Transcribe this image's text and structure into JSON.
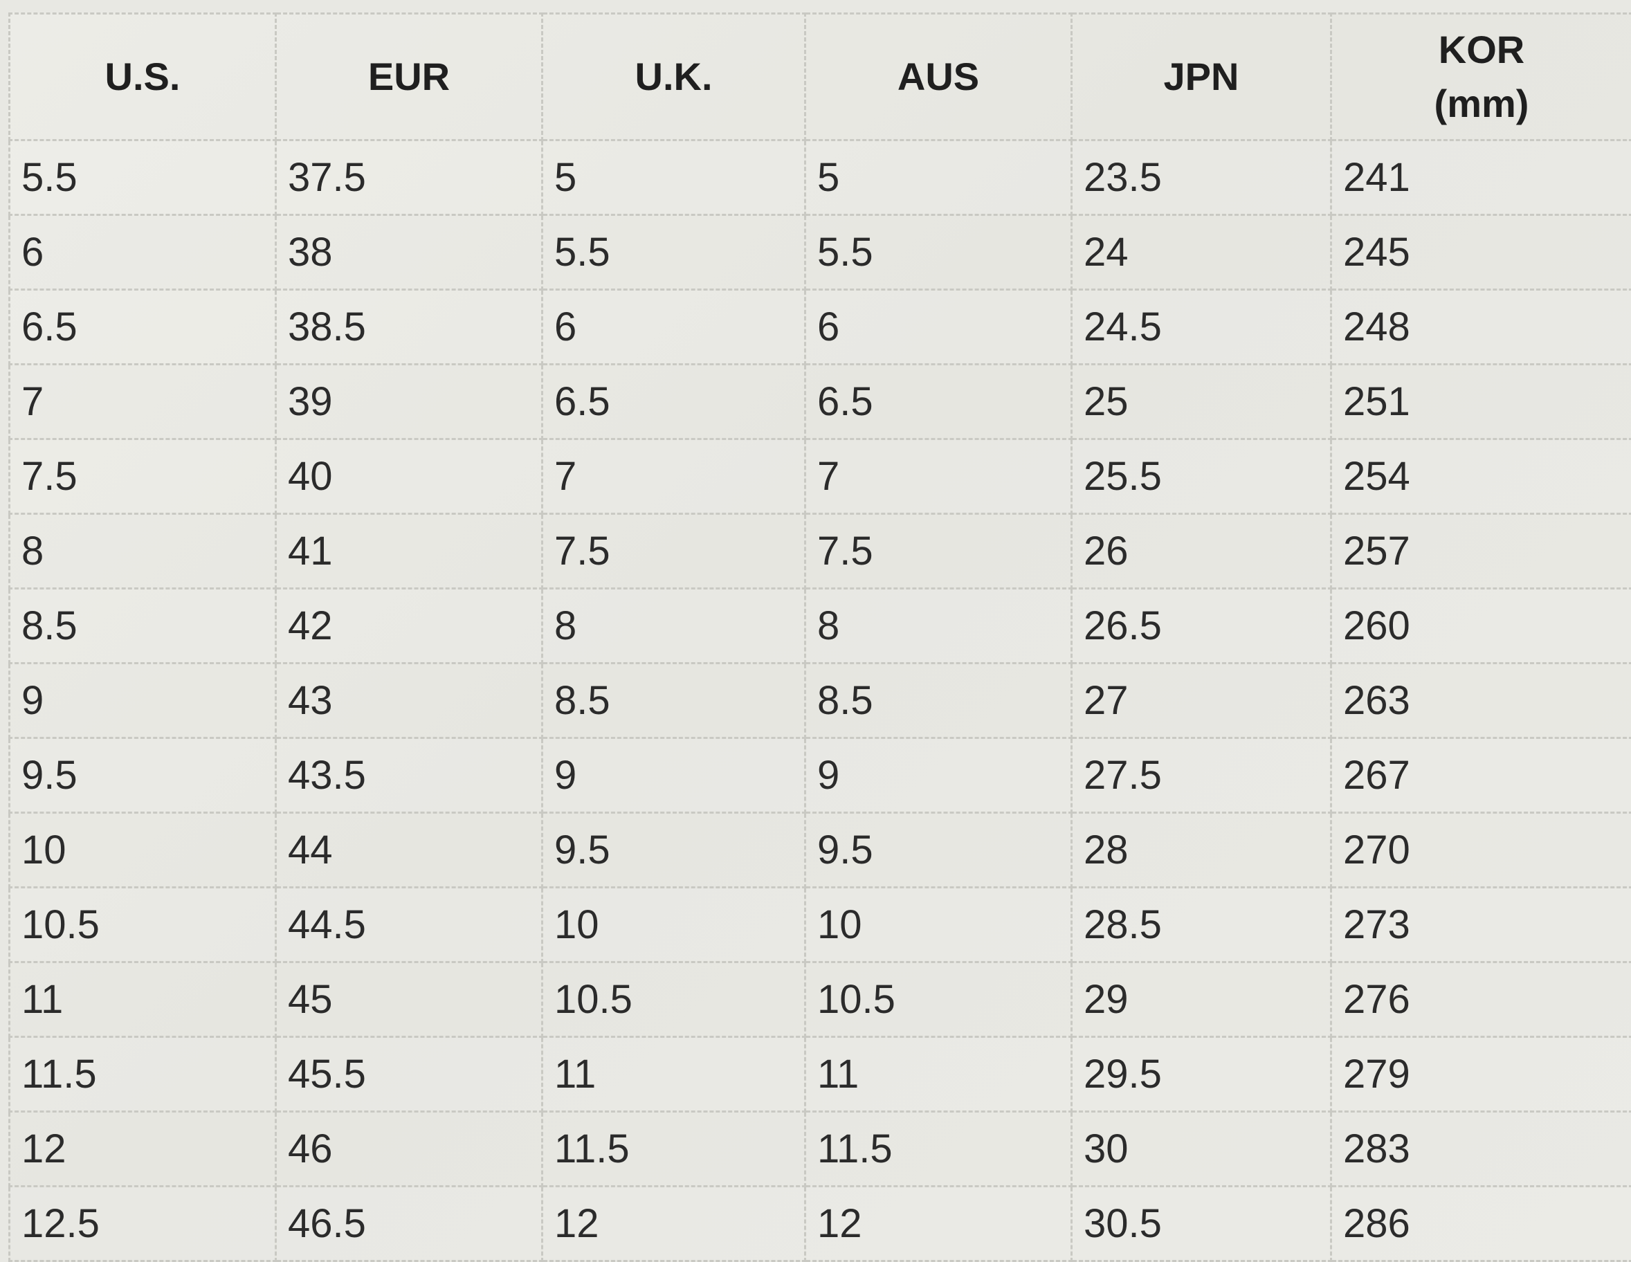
{
  "headers": [
    "U.S.",
    "EUR",
    "U.K.",
    "AUS",
    "JPN",
    "KOR\n(mm)"
  ],
  "rows": [
    [
      "5.5",
      "37.5",
      "5",
      "5",
      "23.5",
      "241"
    ],
    [
      "6",
      "38",
      "5.5",
      "5.5",
      "24",
      "245"
    ],
    [
      "6.5",
      "38.5",
      "6",
      "6",
      "24.5",
      "248"
    ],
    [
      "7",
      "39",
      "6.5",
      "6.5",
      "25",
      "251"
    ],
    [
      "7.5",
      "40",
      "7",
      "7",
      "25.5",
      "254"
    ],
    [
      "8",
      "41",
      "7.5",
      "7.5",
      "26",
      "257"
    ],
    [
      "8.5",
      "42",
      "8",
      "8",
      "26.5",
      "260"
    ],
    [
      "9",
      "43",
      "8.5",
      "8.5",
      "27",
      "263"
    ],
    [
      "9.5",
      "43.5",
      "9",
      "9",
      "27.5",
      "267"
    ],
    [
      "10",
      "44",
      "9.5",
      "9.5",
      "28",
      "270"
    ],
    [
      "10.5",
      "44.5",
      "10",
      "10",
      "28.5",
      "273"
    ],
    [
      "11",
      "45",
      "10.5",
      "10.5",
      "29",
      "276"
    ],
    [
      "11.5",
      "45.5",
      "11",
      "11",
      "29.5",
      "279"
    ],
    [
      "12",
      "46",
      "11.5",
      "11.5",
      "30",
      "283"
    ],
    [
      "12.5",
      "46.5",
      "12",
      "12",
      "30.5",
      "286"
    ]
  ]
}
